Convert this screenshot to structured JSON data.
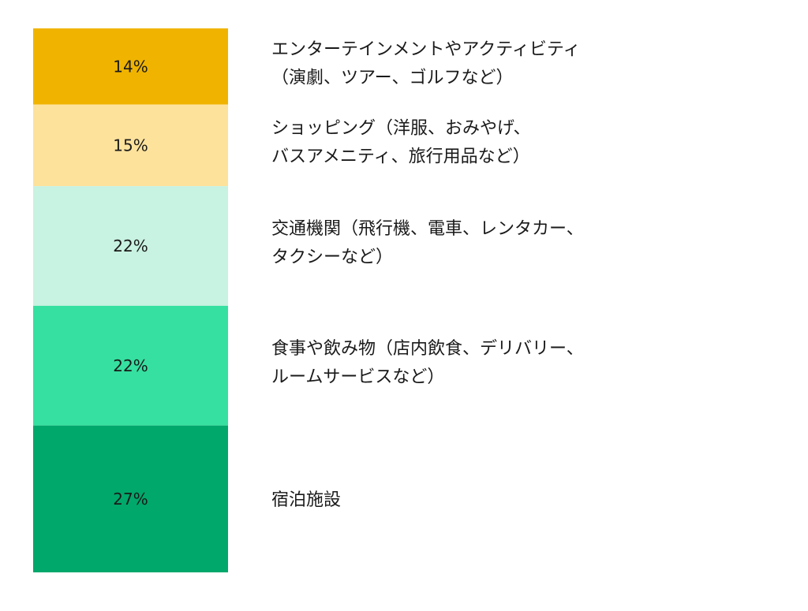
{
  "chart_data": {
    "type": "bar",
    "stacked": true,
    "orientation": "vertical",
    "segments": [
      {
        "value": 14,
        "value_label": "14%",
        "label_lines": [
          "エンターテインメントやアクティビティ",
          "（演劇、ツアー、ゴルフなど）"
        ],
        "color": "#F0B400"
      },
      {
        "value": 15,
        "value_label": "15%",
        "label_lines": [
          "ショッピング（洋服、おみやげ、",
          "バスアメニティ、旅行用品など）"
        ],
        "color": "#FDE29C"
      },
      {
        "value": 22,
        "value_label": "22%",
        "label_lines": [
          "交通機関（飛行機、電車、レンタカー、",
          "タクシーなど）"
        ],
        "color": "#C8F2E1"
      },
      {
        "value": 22,
        "value_label": "22%",
        "label_lines": [
          "食事や飲み物（店内飲食、デリバリー、",
          "ルームサービスなど）"
        ],
        "color": "#36E0A0"
      },
      {
        "value": 27,
        "value_label": "27%",
        "label_lines": [
          "宿泊施設"
        ],
        "color": "#00A86B"
      }
    ]
  }
}
